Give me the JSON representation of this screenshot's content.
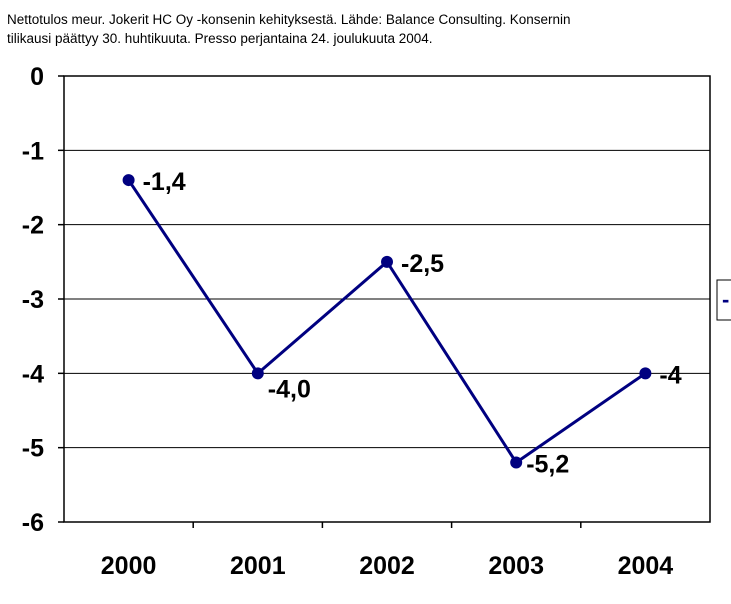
{
  "caption": "Nettotulos meur. Jokerit HC Oy -konsenin kehityksestä. Lähde: Balance Consulting. Konsernin\ntilikausi päättyy 30. huhtikuuta. Presso perjantaina 24. joulukuuta 2004.",
  "chart_data": {
    "type": "line",
    "title": "",
    "xlabel": "",
    "ylabel": "",
    "categories": [
      "2000",
      "2001",
      "2002",
      "2003",
      "2004"
    ],
    "series": [
      {
        "values": [
          -1.4,
          -4.0,
          -2.5,
          -5.2,
          -4.0
        ],
        "data_labels": [
          "-1,4",
          "-4,0",
          "-2,5",
          "-5,2",
          "-4"
        ],
        "color": "#000080"
      }
    ],
    "ylim": [
      -6,
      0
    ],
    "yticks": [
      0,
      -1,
      -2,
      -3,
      -4,
      -5,
      -6
    ],
    "ytick_labels": [
      "0",
      "-1",
      "-2",
      "-3",
      "-4",
      "-5",
      "-6"
    ],
    "grid": true,
    "legend": "right, clipped",
    "legend_visible_text": "-"
  }
}
